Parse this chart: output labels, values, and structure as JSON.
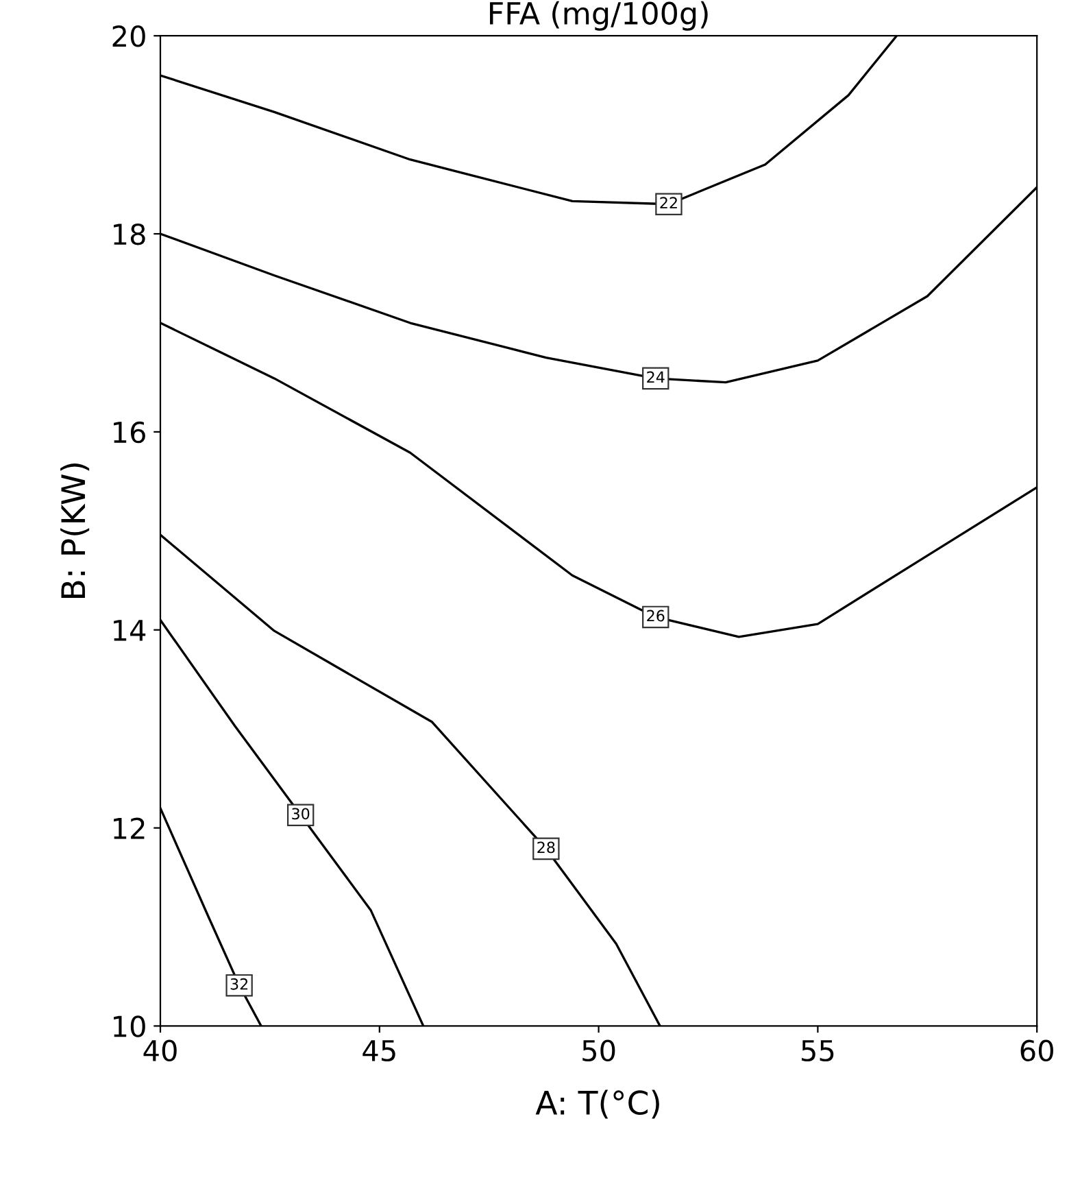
{
  "chart_data": {
    "type": "line",
    "title": "FFA (mg/100g)",
    "xlabel": "A: T(°C)",
    "ylabel": "B: P(KW)",
    "xlim": [
      40,
      60
    ],
    "xticks": [
      40,
      45,
      50,
      55,
      60
    ],
    "ylim": [
      10,
      20
    ],
    "yticks": [
      10,
      12,
      14,
      16,
      18,
      20
    ],
    "grid": false,
    "legend": false,
    "marker": "none",
    "line_style": "solid",
    "series": [
      {
        "name": "22",
        "color": "#000000",
        "x": [
          40,
          42.6,
          45.7,
          49.4,
          51.6,
          53.8,
          55.7,
          56.8
        ],
        "values": [
          19.6,
          19.23,
          18.75,
          18.33,
          18.3,
          18.7,
          19.4,
          20
        ]
      },
      {
        "name": "24",
        "color": "#000000",
        "x": [
          40,
          42.6,
          45.7,
          48.8,
          51.3,
          52.9,
          55.0,
          57.5,
          60
        ],
        "values": [
          18.0,
          17.58,
          17.1,
          16.75,
          16.54,
          16.5,
          16.72,
          17.37,
          18.47
        ]
      },
      {
        "name": "26",
        "color": "#000000",
        "x": [
          40,
          42.6,
          45.7,
          49.4,
          51.3,
          53.2,
          55.0,
          57.5,
          60
        ],
        "values": [
          17.1,
          16.54,
          15.79,
          14.55,
          14.13,
          13.93,
          14.06,
          14.75,
          15.44
        ]
      },
      {
        "name": "28",
        "color": "#000000",
        "x": [
          40,
          42.6,
          46.2,
          48.8,
          50.4,
          51.4
        ],
        "values": [
          14.96,
          13.99,
          13.07,
          11.79,
          10.83,
          10
        ]
      },
      {
        "name": "30",
        "color": "#000000",
        "x": [
          40,
          41.7,
          43.2,
          44.8,
          46.0
        ],
        "values": [
          14.1,
          13.03,
          12.13,
          11.17,
          10
        ]
      },
      {
        "name": "32",
        "color": "#000000",
        "x": [
          40,
          41.1,
          41.8,
          42.3
        ],
        "values": [
          12.2,
          11.1,
          10.41,
          10
        ]
      }
    ]
  }
}
